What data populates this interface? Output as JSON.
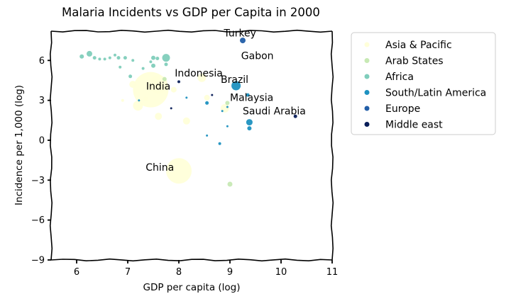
{
  "chart_data": {
    "type": "scatter",
    "title": "Malaria Incidents vs GDP per Capita in 2000",
    "xlabel": "GDP per capita (log)",
    "ylabel": "Incidence per 1,000 (log)",
    "xlim": [
      5.5,
      11
    ],
    "ylim": [
      -9,
      8.2
    ],
    "xticks": [
      "6",
      "7",
      "8",
      "9",
      "10",
      "11"
    ],
    "yticks": [
      "−9",
      "−6",
      "−3",
      "0",
      "3",
      "6"
    ],
    "ytick_values": [
      -9,
      -6,
      -3,
      0,
      3,
      6
    ],
    "xtick_values": [
      6,
      7,
      8,
      9,
      10,
      11
    ],
    "grid": false,
    "legend_position": "outside-right",
    "series": [
      {
        "name": "Asia & Pacific",
        "color": "#ffffd9",
        "points": [
          {
            "x": 8.0,
            "y": -2.3,
            "size": 18
          },
          {
            "x": 7.45,
            "y": 3.8,
            "size": 25
          },
          {
            "x": 7.6,
            "y": 4.2,
            "size": 13
          },
          {
            "x": 7.2,
            "y": 2.6,
            "size": 7
          },
          {
            "x": 7.6,
            "y": 1.8,
            "size": 5
          },
          {
            "x": 8.15,
            "y": 1.45,
            "size": 5
          },
          {
            "x": 8.45,
            "y": 4.7,
            "size": 6
          },
          {
            "x": 8.9,
            "y": 2.4,
            "size": 6
          },
          {
            "x": 7.1,
            "y": 4.2,
            "size": 5
          },
          {
            "x": 7.9,
            "y": 3.8,
            "size": 4
          },
          {
            "x": 8.55,
            "y": 3.2,
            "size": 4
          },
          {
            "x": 7.35,
            "y": 3.1,
            "size": 3
          },
          {
            "x": 6.9,
            "y": 3.0,
            "size": 2
          }
        ]
      },
      {
        "name": "Arab States",
        "color": "#c7e9b4",
        "points": [
          {
            "x": 9.0,
            "y": -3.3,
            "size": 3.5
          },
          {
            "x": 8.95,
            "y": 2.8,
            "size": 3
          },
          {
            "x": 7.72,
            "y": 4.6,
            "size": 3
          }
        ]
      },
      {
        "name": "Africa",
        "color": "#7fcdbb",
        "points": [
          {
            "x": 6.25,
            "y": 6.5,
            "size": 4
          },
          {
            "x": 6.1,
            "y": 6.3,
            "size": 3
          },
          {
            "x": 6.35,
            "y": 6.2,
            "size": 2.5
          },
          {
            "x": 6.45,
            "y": 6.1,
            "size": 2
          },
          {
            "x": 6.55,
            "y": 6.1,
            "size": 2
          },
          {
            "x": 6.65,
            "y": 6.2,
            "size": 2
          },
          {
            "x": 6.75,
            "y": 6.4,
            "size": 2
          },
          {
            "x": 6.82,
            "y": 6.2,
            "size": 2.5
          },
          {
            "x": 6.95,
            "y": 6.2,
            "size": 2.5
          },
          {
            "x": 7.1,
            "y": 6.0,
            "size": 2
          },
          {
            "x": 7.5,
            "y": 6.2,
            "size": 3
          },
          {
            "x": 7.58,
            "y": 6.15,
            "size": 2.5
          },
          {
            "x": 7.75,
            "y": 6.2,
            "size": 5.5
          },
          {
            "x": 7.75,
            "y": 5.7,
            "size": 2.5
          },
          {
            "x": 7.5,
            "y": 5.6,
            "size": 3
          },
          {
            "x": 7.3,
            "y": 5.4,
            "size": 2
          },
          {
            "x": 6.85,
            "y": 5.5,
            "size": 2
          },
          {
            "x": 7.05,
            "y": 4.8,
            "size": 2.5
          },
          {
            "x": 7.45,
            "y": 5.9,
            "size": 2
          }
        ]
      },
      {
        "name": "South/Latin America",
        "color": "#1d91c0",
        "points": [
          {
            "x": 9.12,
            "y": 4.1,
            "size": 6.5
          },
          {
            "x": 9.38,
            "y": 1.35,
            "size": 4.5
          },
          {
            "x": 9.38,
            "y": 0.9,
            "size": 3
          },
          {
            "x": 9.35,
            "y": 3.4,
            "size": 2.5
          },
          {
            "x": 8.55,
            "y": 2.8,
            "size": 2.5
          },
          {
            "x": 8.8,
            "y": -0.25,
            "size": 2
          },
          {
            "x": 8.55,
            "y": 0.35,
            "size": 1.5
          },
          {
            "x": 8.95,
            "y": 1.05,
            "size": 1.5
          },
          {
            "x": 8.85,
            "y": 2.2,
            "size": 1.5
          },
          {
            "x": 8.15,
            "y": 3.2,
            "size": 1.5
          },
          {
            "x": 7.22,
            "y": 3.0,
            "size": 1.5
          },
          {
            "x": 8.95,
            "y": 2.5,
            "size": 1.5
          }
        ]
      },
      {
        "name": "Europe",
        "color": "#225ea8",
        "points": [
          {
            "x": 9.25,
            "y": 7.5,
            "size": 4
          }
        ]
      },
      {
        "name": "Middle east",
        "color": "#081d58",
        "points": [
          {
            "x": 10.28,
            "y": 1.8,
            "size": 2.5
          },
          {
            "x": 8.0,
            "y": 4.4,
            "size": 2
          },
          {
            "x": 7.85,
            "y": 2.4,
            "size": 1.5
          },
          {
            "x": 8.65,
            "y": 3.4,
            "size": 1.5
          }
        ]
      }
    ],
    "annotations": [
      {
        "text": "China",
        "x": 7.35,
        "y": -2.3
      },
      {
        "text": "Turkey",
        "x": 8.88,
        "y": 7.8
      },
      {
        "text": "Gabon",
        "x": 9.22,
        "y": 6.1
      },
      {
        "text": "Indonesia",
        "x": 7.92,
        "y": 4.8
      },
      {
        "text": "India",
        "x": 7.36,
        "y": 3.8
      },
      {
        "text": "Brazil",
        "x": 8.82,
        "y": 4.3
      },
      {
        "text": "Malaysia",
        "x": 9.0,
        "y": 2.95
      },
      {
        "text": "Saudi Arabia",
        "x": 9.25,
        "y": 1.95
      }
    ]
  }
}
